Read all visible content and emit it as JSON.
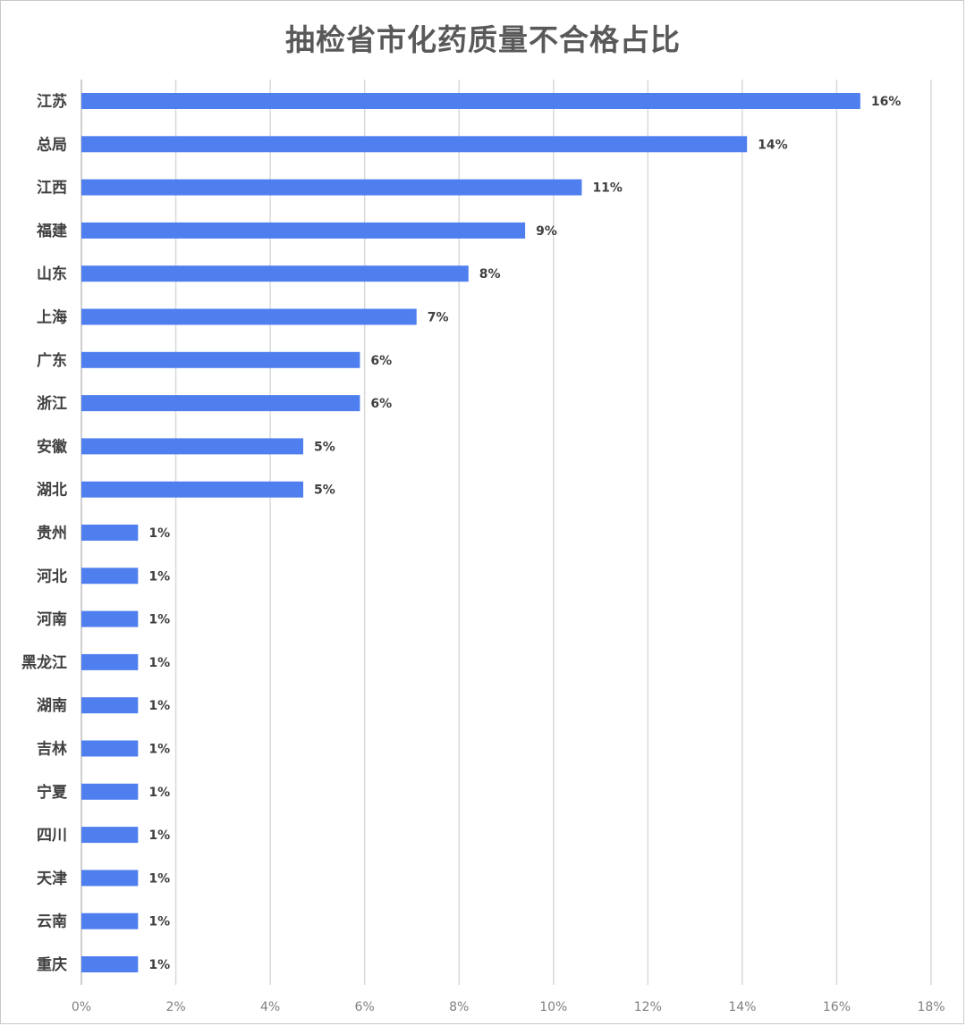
{
  "chart_data": {
    "type": "bar",
    "orientation": "horizontal",
    "title": "抽检省市化药质量不合格占比",
    "categories": [
      "江苏",
      "总局",
      "江西",
      "福建",
      "山东",
      "上海",
      "广东",
      "浙江",
      "安徽",
      "湖北",
      "贵州",
      "河北",
      "河南",
      "黑龙江",
      "湖南",
      "吉林",
      "宁夏",
      "四川",
      "天津",
      "云南",
      "重庆"
    ],
    "values": [
      16.5,
      14.1,
      10.6,
      9.4,
      8.2,
      7.1,
      5.9,
      5.9,
      4.7,
      4.7,
      1.2,
      1.2,
      1.2,
      1.2,
      1.2,
      1.2,
      1.2,
      1.2,
      1.2,
      1.2,
      1.2
    ],
    "value_labels": [
      "16%",
      "14%",
      "11%",
      "9%",
      "8%",
      "7%",
      "6%",
      "6%",
      "5%",
      "5%",
      "1%",
      "1%",
      "1%",
      "1%",
      "1%",
      "1%",
      "1%",
      "1%",
      "1%",
      "1%",
      "1%"
    ],
    "x_ticks": [
      "0%",
      "2%",
      "4%",
      "6%",
      "8%",
      "10%",
      "12%",
      "14%",
      "16%",
      "18%"
    ],
    "xlim": [
      0,
      18
    ],
    "grid": true,
    "bar_color": "#4f7fef",
    "grid_color": "#d9d9d9",
    "legend": "none"
  }
}
